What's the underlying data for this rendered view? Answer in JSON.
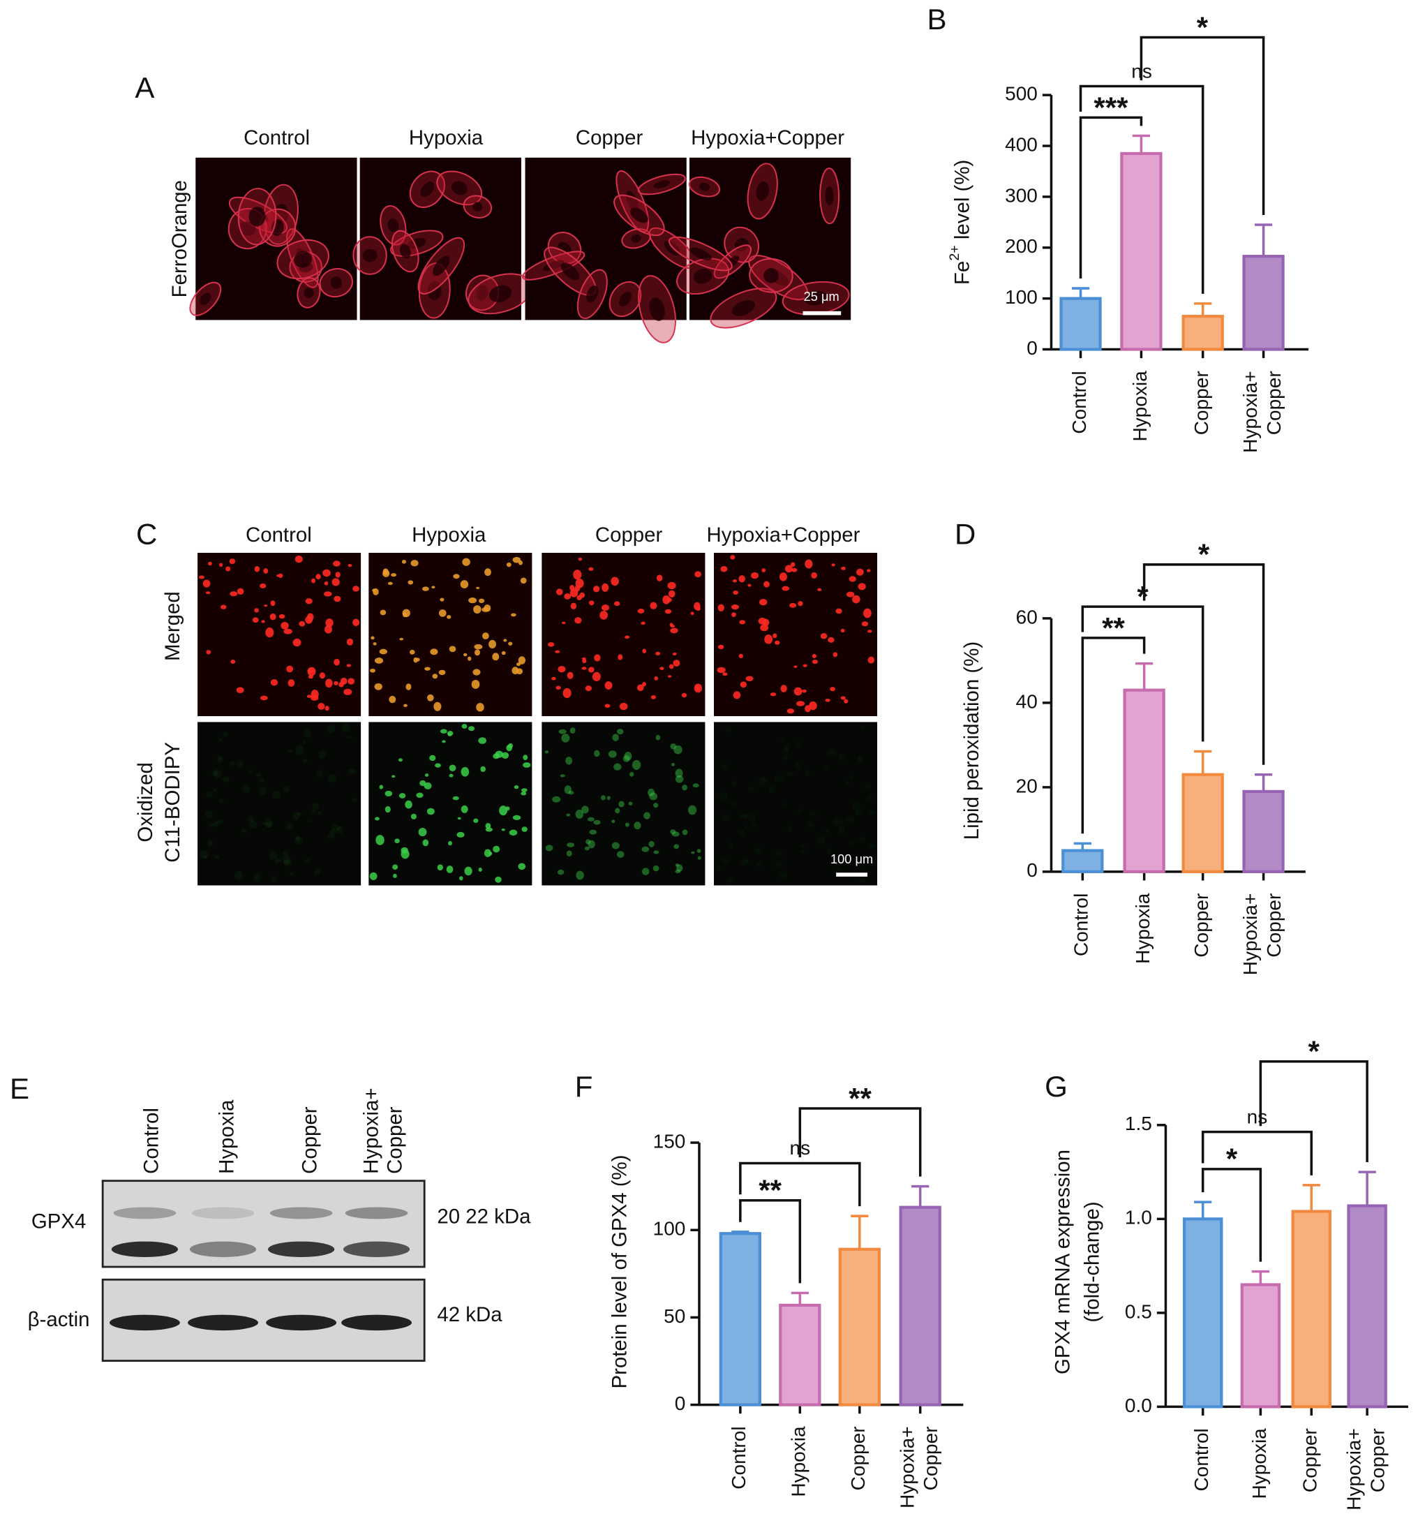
{
  "figure": {
    "panel_a": {
      "letter": "A",
      "columns": [
        "Control",
        "Hypoxia",
        "Copper",
        "Hypoxia+Copper"
      ],
      "rows": [
        "FerroOrange"
      ],
      "scale_bar": "25 μm"
    },
    "panel_c": {
      "letter": "C",
      "columns": [
        "Control",
        "Hypoxia",
        "Copper",
        "Hypoxia+Copper"
      ],
      "rows": [
        "Merged",
        [
          "Oxidized",
          "C11-BODIPY"
        ]
      ],
      "scale_bar": "100 μm"
    },
    "panel_e": {
      "letter": "E",
      "lanes": [
        "Control",
        "Hypoxia",
        "Copper",
        [
          "Hypoxia+",
          "Copper"
        ]
      ],
      "bands": [
        {
          "name": "GPX4",
          "size": "20 22 kDa"
        },
        {
          "name": "β-actin",
          "size": "42 kDa"
        }
      ]
    }
  },
  "chart_data": [
    {
      "type": "bar",
      "panel": "B",
      "ylabel": {
        "base": "Fe",
        "superscript": "2+",
        "suffix": " level (%)"
      },
      "categories": [
        "Control",
        "Hypoxia",
        "Copper",
        [
          "Hypoxia+",
          "Copper"
        ]
      ],
      "series": [
        {
          "values": [
            100,
            385,
            65,
            183
          ],
          "errors": [
            20,
            35,
            25,
            62
          ],
          "colors": [
            "#7eb0e2",
            "#e3a3d0",
            "#f7b07c",
            "#b28bc6"
          ],
          "edge_colors": [
            "#4b8fd6",
            "#c56bae",
            "#f1893f",
            "#9764b3"
          ]
        }
      ],
      "ylim": [
        0,
        500
      ],
      "yticks": [
        0,
        100,
        200,
        300,
        400,
        500
      ],
      "grid": false,
      "significance": [
        {
          "from": 0,
          "to": 1,
          "label": "***"
        },
        {
          "from": 0,
          "to": 2,
          "label": "ns"
        },
        {
          "from": 1,
          "to": 3,
          "label": "*"
        }
      ]
    },
    {
      "type": "bar",
      "panel": "D",
      "ylabel": "Lipid peroxidation (%)",
      "categories": [
        "Control",
        "Hypoxia",
        "Copper",
        [
          "Hypoxia+",
          "Copper"
        ]
      ],
      "series": [
        {
          "values": [
            5,
            43,
            23,
            19
          ],
          "errors": [
            1.7,
            6.3,
            5.5,
            4
          ],
          "colors": [
            "#7eb0e2",
            "#e3a3d0",
            "#f7b07c",
            "#b28bc6"
          ],
          "edge_colors": [
            "#4b8fd6",
            "#c56bae",
            "#f1893f",
            "#9764b3"
          ]
        }
      ],
      "ylim": [
        0,
        60
      ],
      "yticks": [
        0,
        20,
        40,
        60
      ],
      "grid": false,
      "significance": [
        {
          "from": 0,
          "to": 1,
          "label": "**"
        },
        {
          "from": 0,
          "to": 2,
          "label": "*"
        },
        {
          "from": 1,
          "to": 3,
          "label": "*"
        }
      ]
    },
    {
      "type": "bar",
      "panel": "F",
      "ylabel": "Protein level of GPX4 (%)",
      "categories": [
        "Control",
        "Hypoxia",
        "Copper",
        [
          "Hypoxia+",
          "Copper"
        ]
      ],
      "series": [
        {
          "values": [
            98,
            57,
            89,
            113
          ],
          "errors": [
            1,
            7,
            19,
            12
          ],
          "colors": [
            "#7eb0e2",
            "#e3a3d0",
            "#f7b07c",
            "#b28bc6"
          ],
          "edge_colors": [
            "#4b8fd6",
            "#c56bae",
            "#f1893f",
            "#9764b3"
          ]
        }
      ],
      "ylim": [
        0,
        150
      ],
      "yticks": [
        0,
        50,
        100,
        150
      ],
      "grid": false,
      "significance": [
        {
          "from": 0,
          "to": 1,
          "label": "**"
        },
        {
          "from": 0,
          "to": 2,
          "label": "ns"
        },
        {
          "from": 1,
          "to": 3,
          "label": "**"
        }
      ]
    },
    {
      "type": "bar",
      "panel": "G",
      "ylabel": [
        "GPX4 mRNA expression",
        "(fold-change)"
      ],
      "categories": [
        "Control",
        "Hypoxia",
        "Copper",
        [
          "Hypoxia+",
          "Copper"
        ]
      ],
      "series": [
        {
          "values": [
            1.0,
            0.65,
            1.04,
            1.07
          ],
          "errors": [
            0.09,
            0.07,
            0.14,
            0.18
          ],
          "colors": [
            "#7eb0e2",
            "#e3a3d0",
            "#f7b07c",
            "#b28bc6"
          ],
          "edge_colors": [
            "#4b8fd6",
            "#c56bae",
            "#f1893f",
            "#9764b3"
          ]
        }
      ],
      "ylim": [
        0,
        1.5
      ],
      "yticks": [
        {
          "value": 0,
          "label": "0.0"
        },
        0.5,
        {
          "value": 1,
          "label": "1.0"
        },
        1.5
      ],
      "grid": false,
      "significance": [
        {
          "from": 0,
          "to": 1,
          "label": "*"
        },
        {
          "from": 0,
          "to": 2,
          "label": "ns"
        },
        {
          "from": 1,
          "to": 3,
          "label": "*"
        }
      ]
    }
  ]
}
